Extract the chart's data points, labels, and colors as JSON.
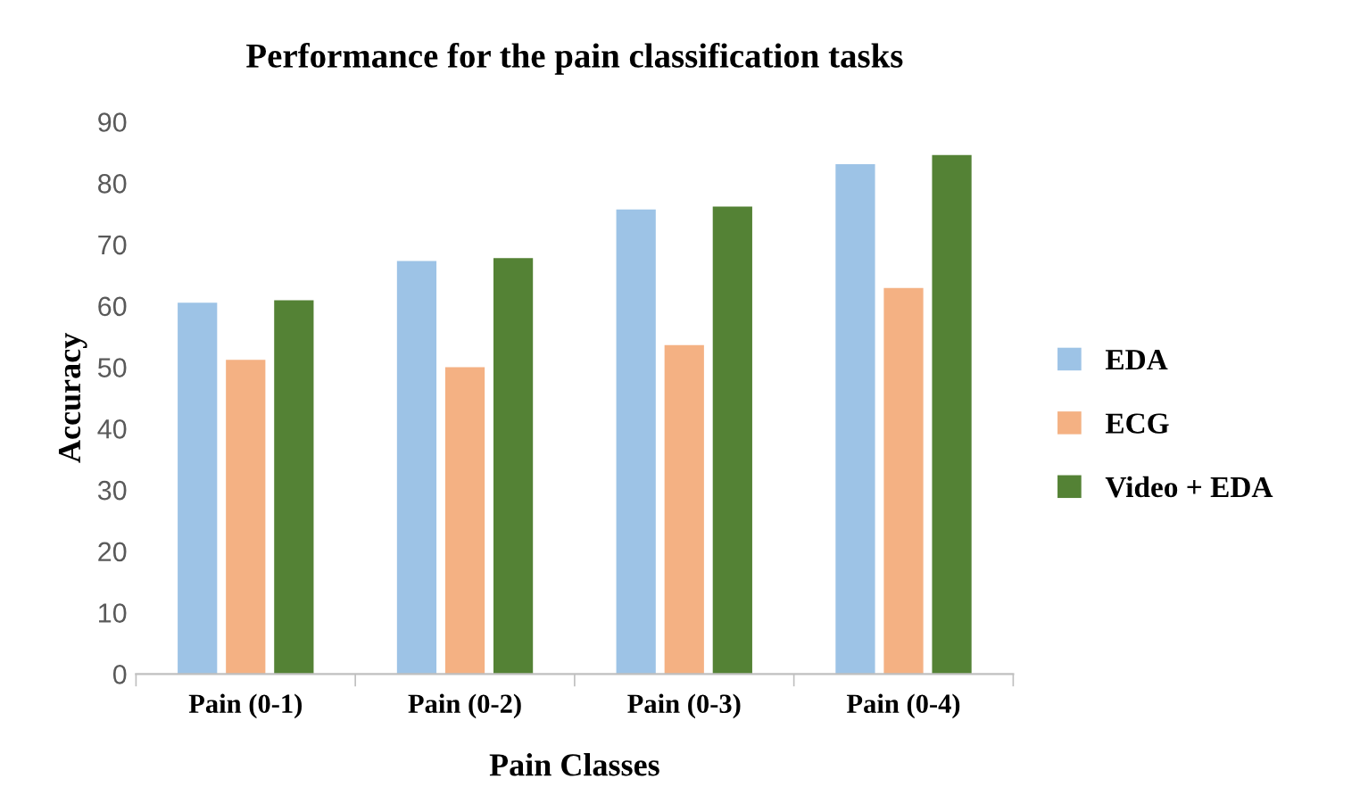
{
  "chart_data": {
    "type": "bar",
    "title": "Performance for the pain classification tasks",
    "xlabel": "Pain Classes",
    "ylabel": "Accuracy",
    "categories": [
      "Pain (0-1)",
      "Pain (0-2)",
      "Pain (0-3)",
      "Pain (0-4)"
    ],
    "series": [
      {
        "name": "EDA",
        "color": "#9dc3e6",
        "values": [
          60.5,
          67.3,
          75.7,
          83.1
        ]
      },
      {
        "name": "ECG",
        "color": "#f4b183",
        "values": [
          51.2,
          50.0,
          53.6,
          62.9
        ]
      },
      {
        "name": "Video + EDA",
        "color": "#548235",
        "values": [
          60.9,
          67.8,
          76.2,
          84.6
        ]
      }
    ],
    "ylim": [
      0,
      90
    ],
    "yticks": [
      0,
      10,
      20,
      30,
      40,
      50,
      60,
      70,
      80,
      90
    ],
    "grid": false,
    "legend": "right"
  }
}
